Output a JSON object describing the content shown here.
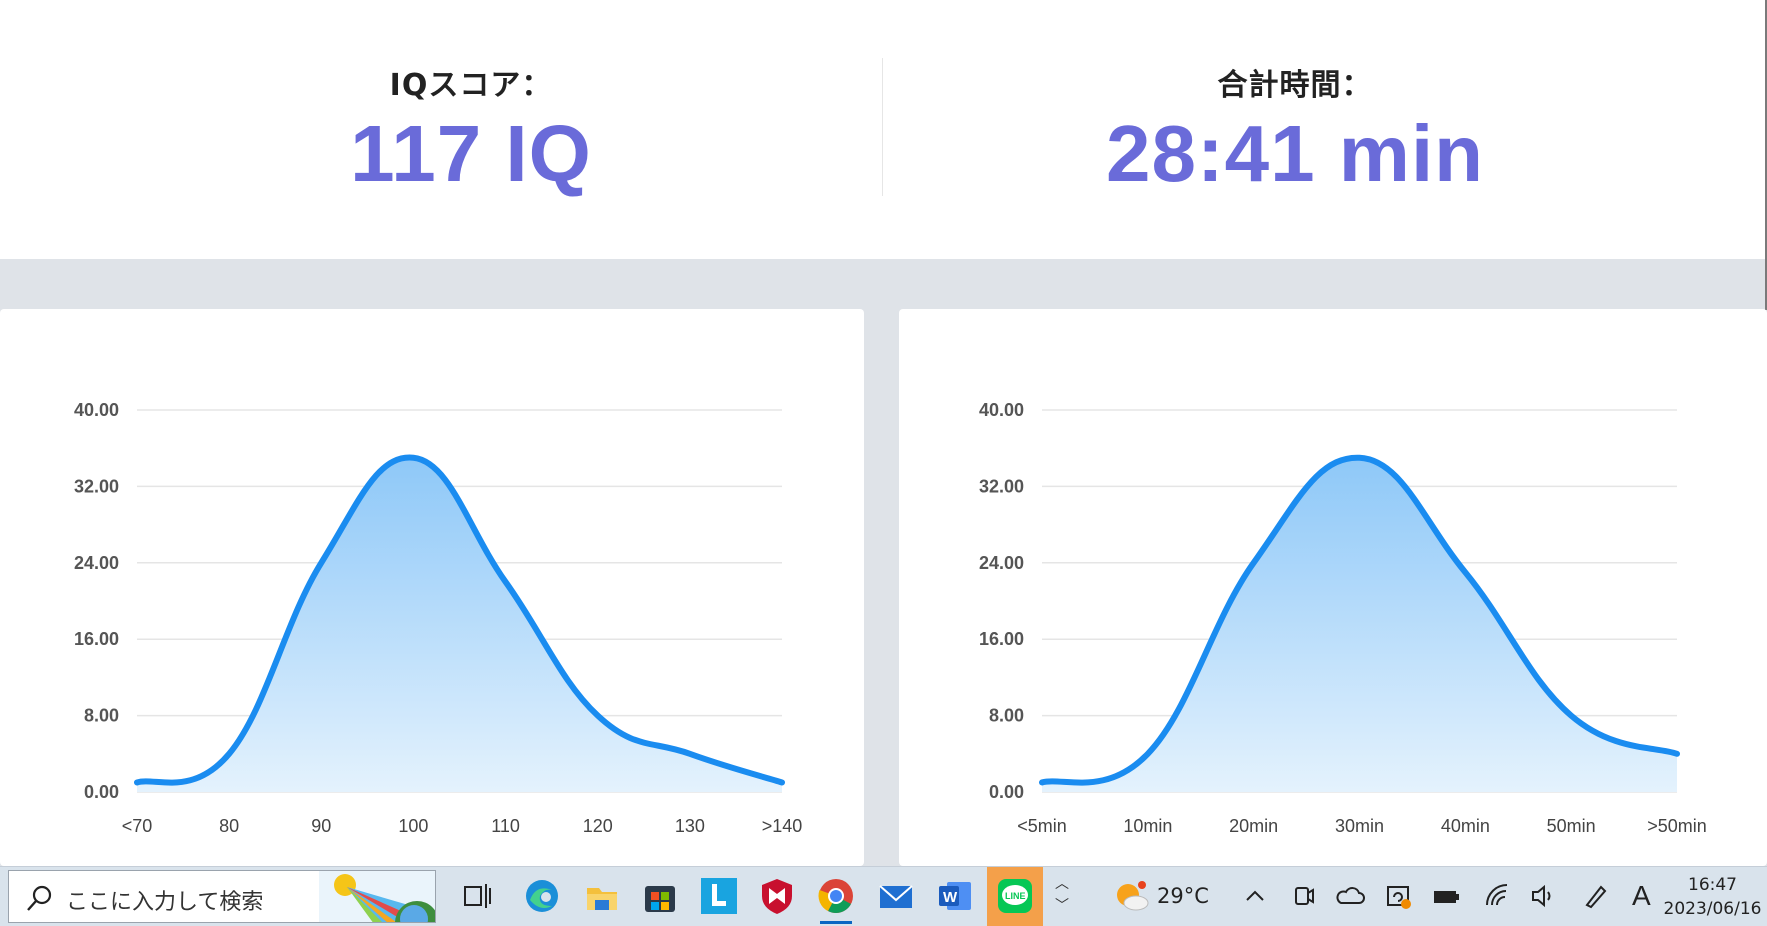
{
  "stats": {
    "iq_label": "IQスコア：",
    "iq_value": "117 IQ",
    "time_label": "合計時間：",
    "time_value": "28:41 min"
  },
  "colors": {
    "accent": "#6a6bd9",
    "line": "#1a8cf0",
    "fill_top": "#8ec8f8",
    "fill_bottom": "#e4f2fd",
    "grid": "#e5e5e5"
  },
  "chart_data": [
    {
      "type": "area",
      "categories": [
        "<70",
        "80",
        "90",
        "100",
        "110",
        "120",
        "130",
        ">140"
      ],
      "values": [
        1,
        4,
        24,
        35,
        22,
        8,
        4,
        1
      ],
      "y_ticks": [
        "0.00",
        "8.00",
        "16.00",
        "24.00",
        "32.00",
        "40.00"
      ],
      "ylim": [
        0,
        40
      ],
      "grid": true
    },
    {
      "type": "area",
      "categories": [
        "<5min",
        "10min",
        "20min",
        "30min",
        "40min",
        "50min",
        ">50min"
      ],
      "values": [
        1,
        4,
        24,
        35,
        23,
        8,
        4
      ],
      "y_ticks": [
        "0.00",
        "8.00",
        "16.00",
        "24.00",
        "32.00",
        "40.00"
      ],
      "ylim": [
        0,
        40
      ],
      "grid": true
    }
  ],
  "taskbar": {
    "search_placeholder": "ここに入力して検索",
    "icons": [
      "task-view-icon",
      "edge-icon",
      "file-explorer-icon",
      "store-icon",
      "l-app-icon",
      "mcafee-icon",
      "chrome-icon",
      "mail-icon",
      "word-icon",
      "line-icon"
    ],
    "weather_temp": "29°C",
    "ime_indicator": "A",
    "time": "16:47",
    "date": "2023/06/16"
  }
}
